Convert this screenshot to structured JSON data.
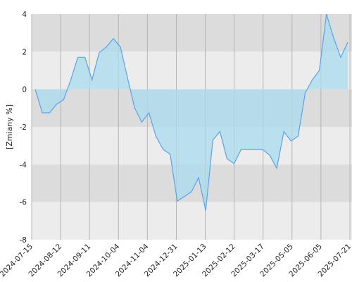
{
  "chart_data": {
    "type": "area",
    "ylabel": "[Zmiany %]",
    "ylim": [
      -8,
      4
    ],
    "yticks": [
      "4",
      "2",
      "0",
      "-2",
      "-4",
      "-6",
      "-8"
    ],
    "xticks": [
      "2024-07-15",
      "2024-08-12",
      "2024-09-11",
      "2024-10-04",
      "2024-11-04",
      "2024-12-31",
      "2025-01-13",
      "2025-02-12",
      "2025-03-17",
      "2025-05-05",
      "2025-06-05",
      "2025-07-21"
    ],
    "grid": true,
    "colors": {
      "line": "#5aa3ec",
      "fill": "#a9dcef",
      "band_dark": "#dcdcdc",
      "band_light": "#ececec",
      "grid": "#b4b4b4"
    },
    "series": [
      {
        "values": [
          0,
          -1.25,
          -1.25,
          -0.8,
          -0.55,
          0.5,
          1.7,
          1.7,
          0.5,
          1.95,
          2.25,
          2.7,
          2.25,
          0.6,
          -1.0,
          -1.75,
          -1.25,
          -2.5,
          -3.2,
          -3.45,
          -5.95,
          -5.7,
          -5.45,
          -4.7,
          -6.45,
          -2.7,
          -2.25,
          -3.7,
          -3.95,
          -3.2,
          -3.2,
          -3.2,
          -3.2,
          -3.5,
          -4.2,
          -2.25,
          -2.75,
          -2.5,
          -0.2,
          0.5,
          1.0,
          4.0,
          2.75,
          1.7,
          2.5
        ]
      }
    ]
  }
}
